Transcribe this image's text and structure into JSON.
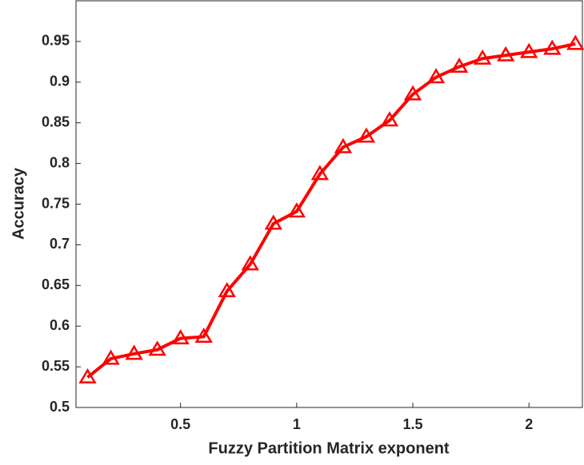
{
  "chart_data": {
    "type": "line",
    "x_label": "Fuzzy Partition Matrix exponent",
    "y_label": "Accuracy",
    "x": [
      0.1,
      0.2,
      0.3,
      0.4,
      0.5,
      0.6,
      0.7,
      0.8,
      0.9,
      1.0,
      1.1,
      1.2,
      1.3,
      1.4,
      1.5,
      1.6,
      1.7,
      1.8,
      1.9,
      2.0,
      2.1,
      2.2
    ],
    "series": [
      {
        "color": "#ff0000",
        "marker": "triangle",
        "values": [
          0.537,
          0.56,
          0.566,
          0.571,
          0.585,
          0.587,
          0.643,
          0.676,
          0.726,
          0.741,
          0.787,
          0.82,
          0.833,
          0.853,
          0.885,
          0.906,
          0.919,
          0.929,
          0.933,
          0.937,
          0.941,
          0.947
        ]
      }
    ],
    "xlim": [
      0.05,
      2.23
    ],
    "ylim": [
      0.5,
      1.0
    ],
    "xticks": [
      0.5,
      1,
      1.5,
      2
    ],
    "yticks": [
      0.5,
      0.55,
      0.6,
      0.65,
      0.7,
      0.75,
      0.8,
      0.85,
      0.9,
      0.95
    ],
    "grid": false
  }
}
